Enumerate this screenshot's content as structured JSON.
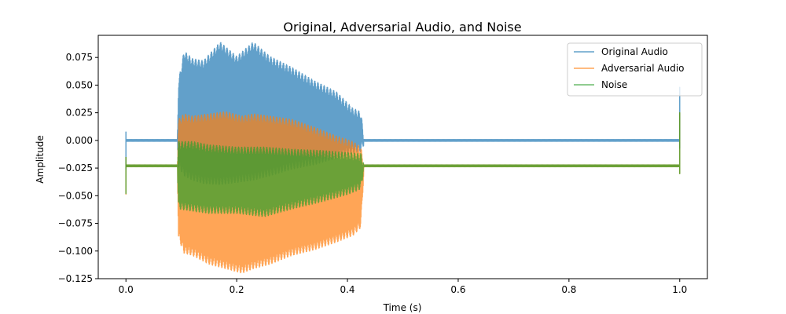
{
  "chart_data": {
    "type": "line",
    "title": "Original, Adversarial Audio, and Noise",
    "xlabel": "Time (s)",
    "ylabel": "Amplitude",
    "xlim": [
      -0.05,
      1.05
    ],
    "ylim": [
      -0.125,
      0.095
    ],
    "xticks": [
      0.0,
      0.2,
      0.4,
      0.6,
      0.8,
      1.0
    ],
    "xtick_labels": [
      "0.0",
      "0.2",
      "0.4",
      "0.6",
      "0.8",
      "1.0"
    ],
    "yticks": [
      -0.125,
      -0.1,
      -0.075,
      -0.05,
      -0.025,
      0.0,
      0.025,
      0.05,
      0.075
    ],
    "ytick_labels": [
      "−0.125",
      "−0.100",
      "−0.075",
      "−0.050",
      "−0.025",
      "0.000",
      "0.025",
      "0.050",
      "0.075"
    ],
    "grid": false,
    "legend_position": "top-right",
    "series": [
      {
        "name": "Original Audio",
        "color": "#1f77b4",
        "baseline": 0.0,
        "envelope_x": [
          0.0,
          0.093,
          0.095,
          0.105,
          0.12,
          0.14,
          0.17,
          0.2,
          0.23,
          0.26,
          0.3,
          0.34,
          0.38,
          0.41,
          0.424,
          0.43,
          1.0
        ],
        "envelope_upper": [
          0.001,
          0.001,
          0.05,
          0.077,
          0.07,
          0.068,
          0.085,
          0.072,
          0.085,
          0.072,
          0.062,
          0.05,
          0.04,
          0.025,
          0.022,
          0.0,
          0.0
        ],
        "envelope_lower": [
          -0.001,
          -0.001,
          -0.02,
          -0.028,
          -0.032,
          -0.035,
          -0.036,
          -0.034,
          -0.032,
          -0.028,
          -0.022,
          -0.018,
          -0.012,
          -0.008,
          -0.006,
          0.0,
          0.0
        ]
      },
      {
        "name": "Adversarial Audio",
        "color": "#ff7f0e",
        "baseline": -0.023,
        "envelope_x": [
          0.0,
          0.093,
          0.095,
          0.105,
          0.12,
          0.15,
          0.18,
          0.21,
          0.23,
          0.26,
          0.3,
          0.34,
          0.38,
          0.41,
          0.424,
          0.43,
          1.0
        ],
        "envelope_upper": [
          -0.022,
          -0.022,
          0.015,
          0.02,
          0.018,
          0.02,
          0.022,
          0.018,
          0.02,
          0.018,
          0.015,
          0.008,
          0.0,
          -0.005,
          -0.01,
          -0.023,
          -0.023
        ],
        "envelope_lower": [
          -0.024,
          -0.024,
          -0.085,
          -0.098,
          -0.1,
          -0.108,
          -0.112,
          -0.116,
          -0.112,
          -0.108,
          -0.1,
          -0.095,
          -0.088,
          -0.082,
          -0.075,
          -0.023,
          -0.023
        ]
      },
      {
        "name": "Noise",
        "color": "#2ca02c",
        "baseline": -0.023,
        "envelope_x": [
          0.0,
          0.093,
          0.095,
          0.12,
          0.15,
          0.2,
          0.25,
          0.3,
          0.35,
          0.4,
          0.424,
          0.43,
          1.0
        ],
        "envelope_upper": [
          -0.022,
          -0.022,
          -0.005,
          -0.005,
          -0.008,
          -0.01,
          -0.01,
          -0.012,
          -0.013,
          -0.015,
          -0.016,
          -0.023,
          -0.023
        ],
        "envelope_lower": [
          -0.024,
          -0.024,
          -0.058,
          -0.06,
          -0.062,
          -0.062,
          -0.065,
          -0.058,
          -0.052,
          -0.045,
          -0.04,
          -0.023,
          -0.023
        ]
      }
    ]
  }
}
